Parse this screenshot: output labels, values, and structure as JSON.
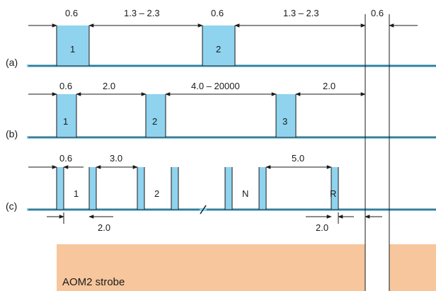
{
  "colors": {
    "pulse_fill": "#8fd3ef",
    "baseline": "#7fcff0",
    "strobe_fill": "#f7c69d",
    "line": "#1a1a1a"
  },
  "rows": [
    {
      "label": "(a)",
      "pulse_labels": [
        "1",
        "2"
      ],
      "dims": [
        "0.6",
        "1.3 – 2.3",
        "0.6",
        "1.3 – 2.3",
        "0.6"
      ]
    },
    {
      "label": "(b)",
      "pulse_labels": [
        "1",
        "2",
        "3"
      ],
      "dims": [
        "0.6",
        "2.0",
        "4.0 – 20000",
        "2.0"
      ]
    },
    {
      "label": "(c)",
      "pulse_labels": [
        "1",
        "2",
        "N",
        "R"
      ],
      "dims_top": [
        "0.6",
        "3.0",
        "5.0"
      ],
      "dims_bottom": [
        "2.0",
        "2.0"
      ]
    }
  ],
  "strobe": {
    "label": "AOM2 strobe"
  }
}
